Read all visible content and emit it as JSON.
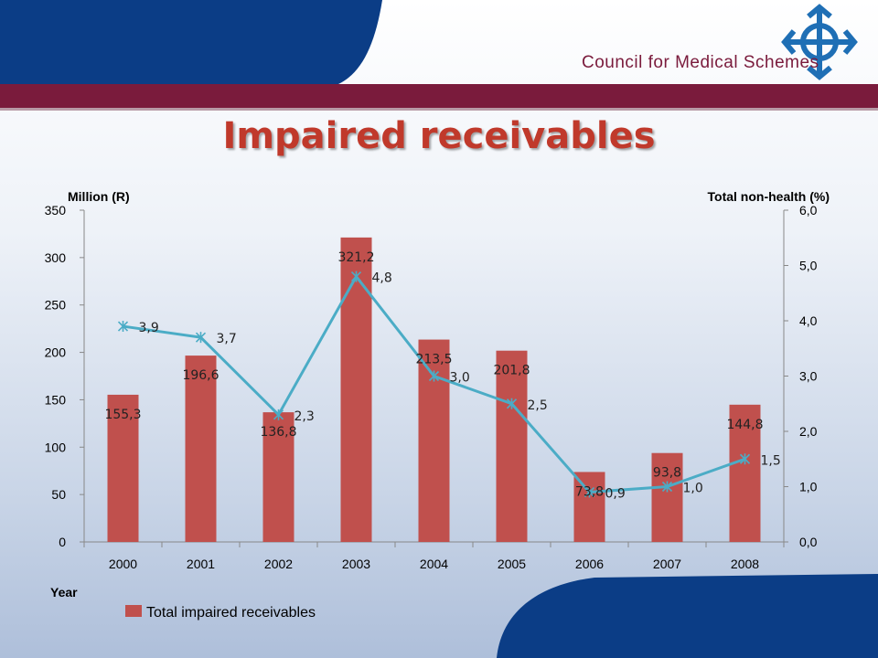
{
  "header": {
    "brand": "Council for Medical Schemes",
    "title": "Impaired receivables"
  },
  "colors": {
    "navy": "#0b3d86",
    "maroon": "#7a1b3c",
    "bar": "#c0504d",
    "line": "#4bacc6",
    "title": "#c0392b"
  },
  "chart_data": {
    "type": "bar",
    "categories": [
      "2000",
      "2001",
      "2002",
      "2003",
      "2004",
      "2005",
      "2006",
      "2007",
      "2008"
    ],
    "series": [
      {
        "name": "Total impaired receivables",
        "type": "bar",
        "axis": "left",
        "values": [
          155.3,
          196.6,
          136.8,
          321.2,
          213.5,
          201.8,
          73.8,
          93.8,
          144.8
        ],
        "labels": [
          "155,3",
          "196,6",
          "136,8",
          "321,2",
          "213,5",
          "201,8",
          "73,8",
          "93,8",
          "144,8"
        ]
      },
      {
        "type": "line",
        "axis": "right",
        "values": [
          3.9,
          3.7,
          2.3,
          4.8,
          3.0,
          2.5,
          0.9,
          1.0,
          1.5
        ],
        "labels": [
          "3,9",
          "3,7",
          "2,3",
          "4,8",
          "3,0",
          "2,5",
          "0,9",
          "1,0",
          "1,5"
        ]
      }
    ],
    "left_axis": {
      "label": "Million (R)",
      "ylim": [
        0,
        350
      ],
      "ticks": [
        "0",
        "50",
        "100",
        "150",
        "200",
        "250",
        "300",
        "350"
      ]
    },
    "right_axis": {
      "label": "Total non-health (%)",
      "ylim": [
        0,
        6
      ],
      "ticks": [
        "0,0",
        "1,0",
        "2,0",
        "3,0",
        "4,0",
        "5,0",
        "6,0"
      ]
    },
    "xlabel": "Year",
    "legend": {
      "position": "bottom-left",
      "entries": [
        "Total impaired receivables"
      ]
    },
    "grid": false
  }
}
